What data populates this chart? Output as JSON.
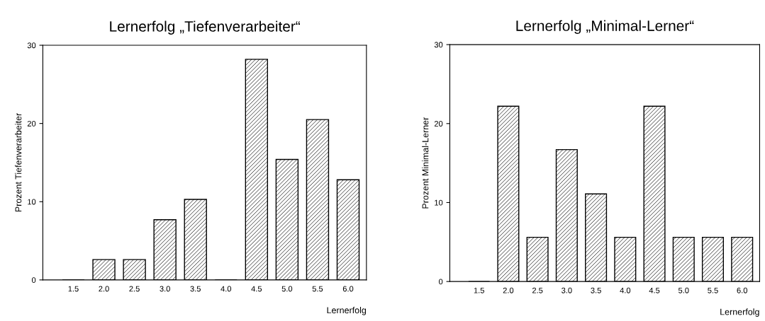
{
  "chart_data": [
    {
      "type": "bar",
      "title": "Lernerfolg „Tiefenverarbeiter“",
      "xlabel": "Lernerfolg",
      "ylabel": "Prozent Tiefenverarbeiter",
      "categories": [
        "1.5",
        "2.0",
        "2.5",
        "3.0",
        "3.5",
        "4.0",
        "4.5",
        "5.0",
        "5.5",
        "6.0"
      ],
      "values": [
        0,
        2.6,
        2.6,
        7.7,
        10.3,
        0,
        28.2,
        15.4,
        20.5,
        12.8
      ],
      "color": "#000000",
      "ylim": [
        0,
        30
      ],
      "yticks": [
        0,
        10,
        20,
        30
      ],
      "grid": false,
      "legend": false
    },
    {
      "type": "bar",
      "title": "Lernerfolg „Minimal-Lerner“",
      "xlabel": "Lernerfolg",
      "ylabel": "Prozent Minimal-Lerner",
      "categories": [
        "1.5",
        "2.0",
        "2.5",
        "3.0",
        "3.5",
        "4.0",
        "4.5",
        "5.0",
        "5.5",
        "6.0"
      ],
      "values": [
        0,
        22.2,
        5.6,
        16.7,
        11.1,
        5.6,
        22.2,
        5.6,
        5.6,
        5.6
      ],
      "color": "#000000",
      "ylim": [
        0,
        30
      ],
      "yticks": [
        0,
        10,
        20,
        30
      ],
      "grid": false,
      "legend": false
    }
  ]
}
